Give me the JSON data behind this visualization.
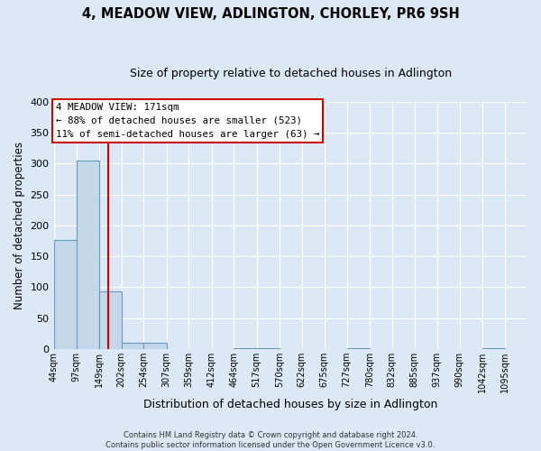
{
  "title": "4, MEADOW VIEW, ADLINGTON, CHORLEY, PR6 9SH",
  "subtitle": "Size of property relative to detached houses in Adlington",
  "xlabel": "Distribution of detached houses by size in Adlington",
  "ylabel": "Number of detached properties",
  "bin_labels": [
    "44sqm",
    "97sqm",
    "149sqm",
    "202sqm",
    "254sqm",
    "307sqm",
    "359sqm",
    "412sqm",
    "464sqm",
    "517sqm",
    "570sqm",
    "622sqm",
    "675sqm",
    "727sqm",
    "780sqm",
    "832sqm",
    "885sqm",
    "937sqm",
    "990sqm",
    "1042sqm",
    "1095sqm"
  ],
  "bin_starts": [
    44,
    97,
    149,
    202,
    254,
    307,
    359,
    412,
    464,
    517,
    570,
    622,
    675,
    727,
    780,
    832,
    885,
    937,
    990,
    1042,
    1095
  ],
  "bar_values": [
    177,
    305,
    93,
    10,
    10,
    0,
    0,
    0,
    1,
    1,
    0,
    0,
    0,
    1,
    0,
    0,
    0,
    0,
    0,
    1,
    0
  ],
  "bar_color": "#c5d8ea",
  "bar_edge_color": "#6699bb",
  "property_line_x": 171,
  "property_line_color": "#cc0000",
  "ylim": [
    0,
    400
  ],
  "yticks": [
    0,
    50,
    100,
    150,
    200,
    250,
    300,
    350,
    400
  ],
  "annotation_title": "4 MEADOW VIEW: 171sqm",
  "annotation_line1": "← 88% of detached houses are smaller (523)",
  "annotation_line2": "11% of semi-detached houses are larger (63) →",
  "annotation_box_facecolor": "#ffffff",
  "annotation_box_edgecolor": "#cc0000",
  "footer1": "Contains HM Land Registry data © Crown copyright and database right 2024.",
  "footer2": "Contains public sector information licensed under the Open Government Licence v3.0.",
  "bg_color": "#dce8f5",
  "grid_color": "#ffffff",
  "bin_width": 53
}
